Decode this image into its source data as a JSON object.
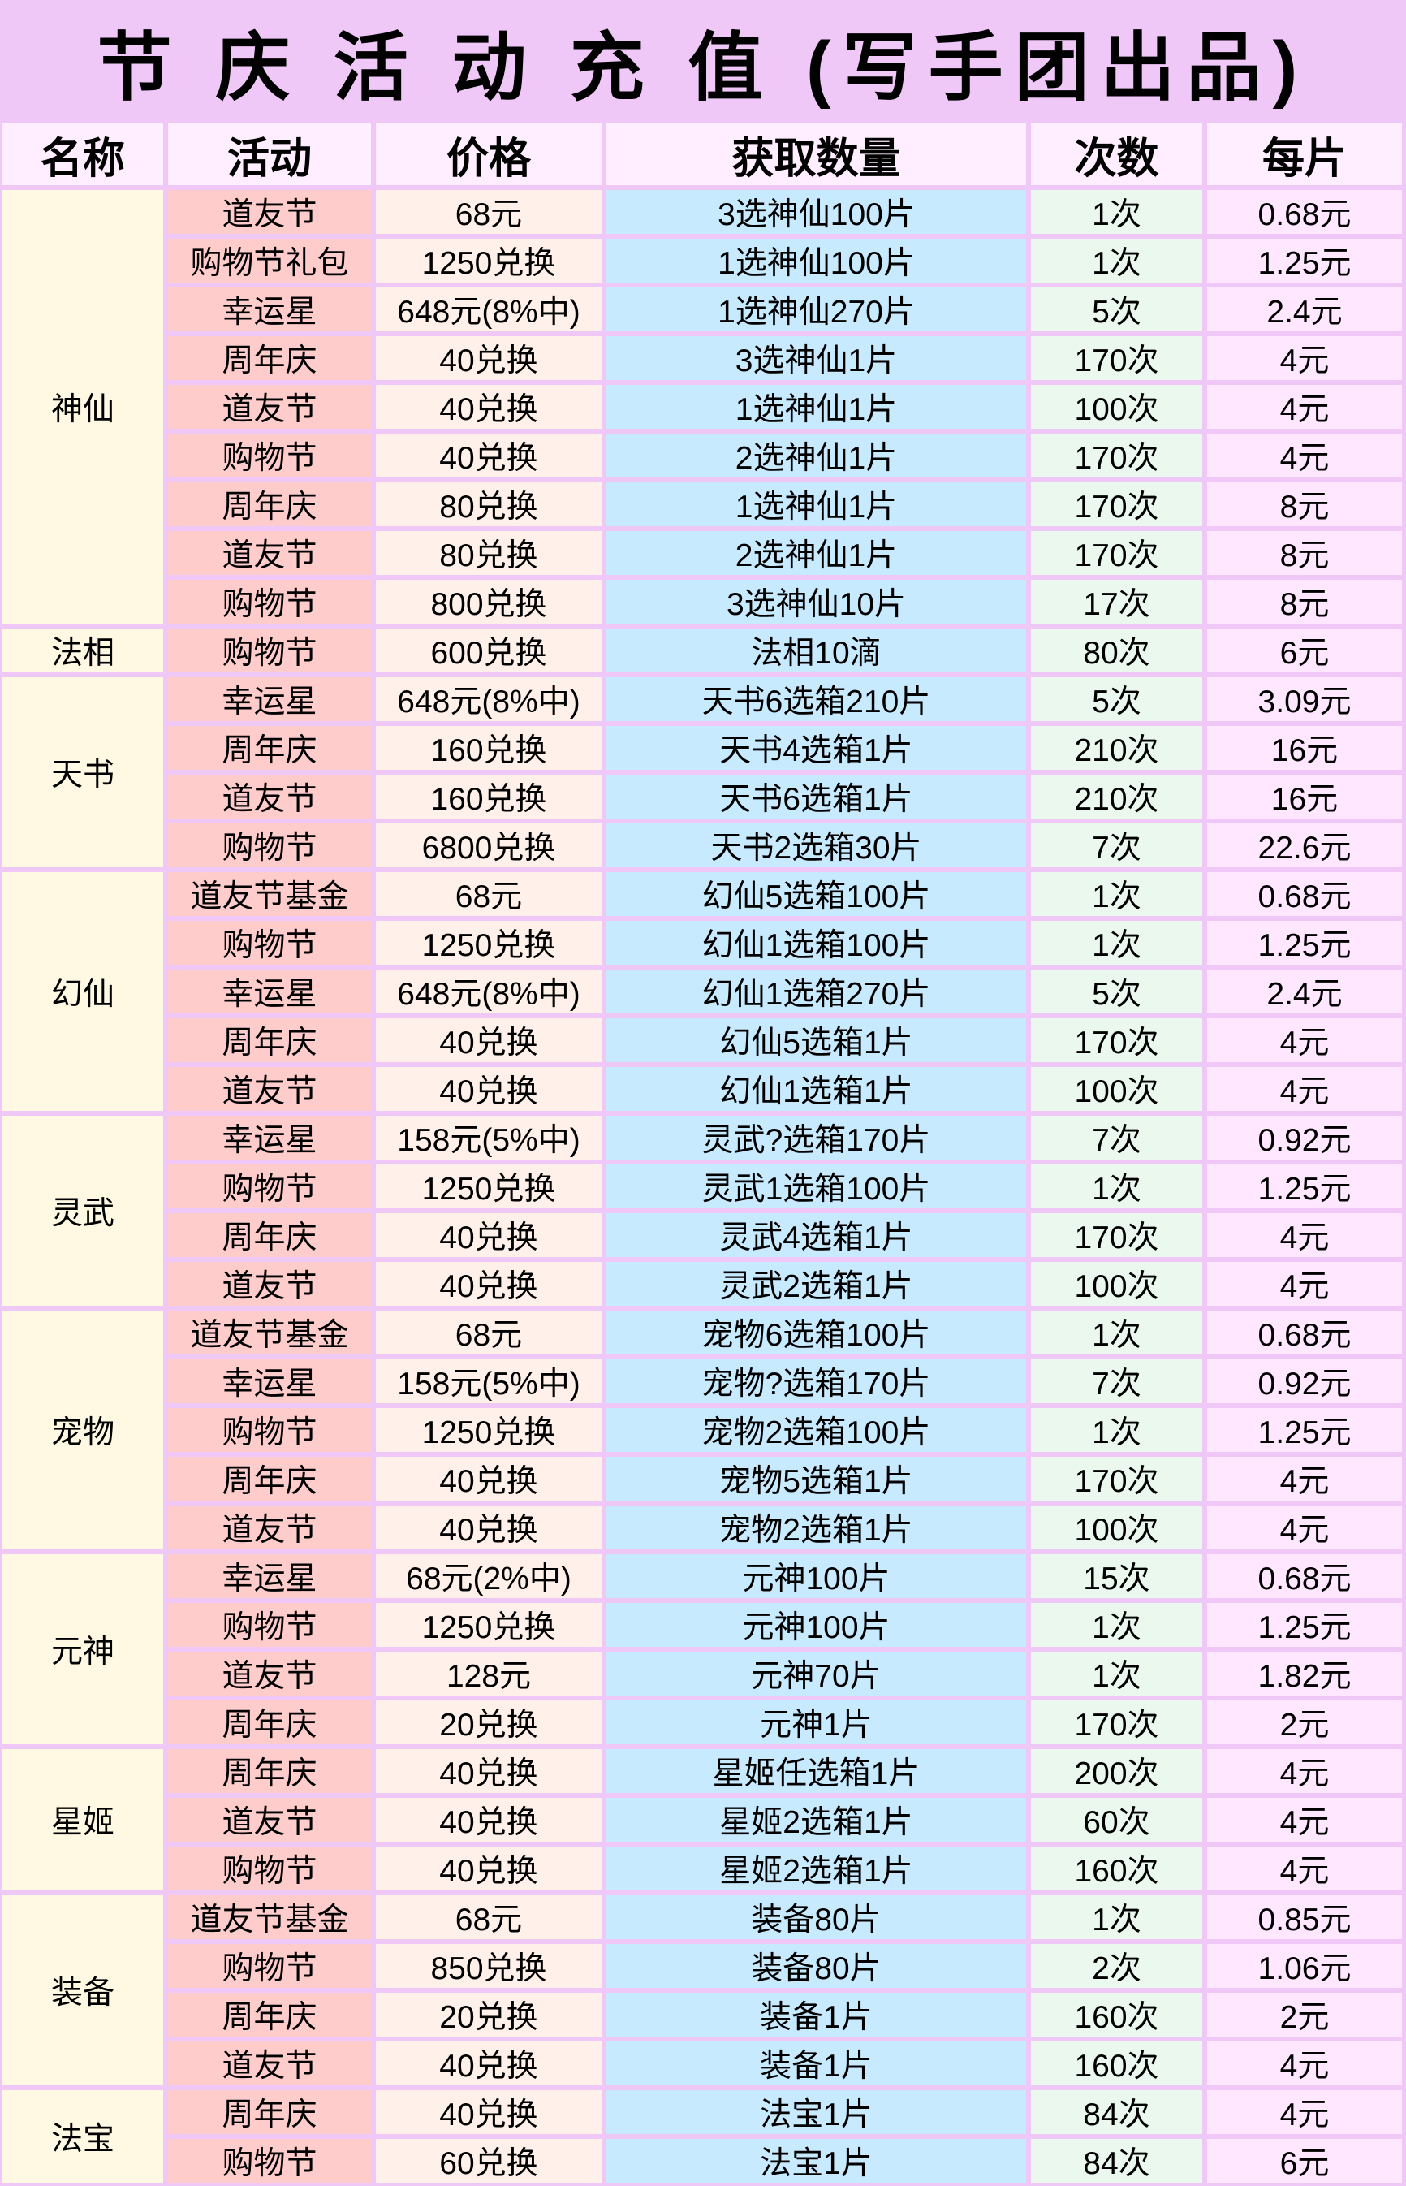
{
  "title": "节 庆 活 动 充 值 (写手团出品)",
  "headers": [
    "名称",
    "活动",
    "价格",
    "获取数量",
    "次数",
    "每片"
  ],
  "colors": {
    "background": "#f0c8f8",
    "header": "#ffeeff",
    "name": "#fff8e2",
    "activity": "#ffcccc",
    "price": "#fff0ea",
    "quantity": "#c8eaff",
    "count": "#eaf8ee",
    "per_piece": "#ffe8ff"
  },
  "groups": [
    {
      "name": "神仙",
      "rows": [
        [
          "道友节",
          "68元",
          "3选神仙100片",
          "1次",
          "0.68元"
        ],
        [
          "购物节礼包",
          "1250兑换",
          "1选神仙100片",
          "1次",
          "1.25元"
        ],
        [
          "幸运星",
          "648元(8%中)",
          "1选神仙270片",
          "5次",
          "2.4元"
        ],
        [
          "周年庆",
          "40兑换",
          "3选神仙1片",
          "170次",
          "4元"
        ],
        [
          "道友节",
          "40兑换",
          "1选神仙1片",
          "100次",
          "4元"
        ],
        [
          "购物节",
          "40兑换",
          "2选神仙1片",
          "170次",
          "4元"
        ],
        [
          "周年庆",
          "80兑换",
          "1选神仙1片",
          "170次",
          "8元"
        ],
        [
          "道友节",
          "80兑换",
          "2选神仙1片",
          "170次",
          "8元"
        ],
        [
          "购物节",
          "800兑换",
          "3选神仙10片",
          "17次",
          "8元"
        ]
      ]
    },
    {
      "name": "法相",
      "rows": [
        [
          "购物节",
          "600兑换",
          "法相10滴",
          "80次",
          "6元"
        ]
      ]
    },
    {
      "name": "天书",
      "rows": [
        [
          "幸运星",
          "648元(8%中)",
          "天书6选箱210片",
          "5次",
          "3.09元"
        ],
        [
          "周年庆",
          "160兑换",
          "天书4选箱1片",
          "210次",
          "16元"
        ],
        [
          "道友节",
          "160兑换",
          "天书6选箱1片",
          "210次",
          "16元"
        ],
        [
          "购物节",
          "6800兑换",
          "天书2选箱30片",
          "7次",
          "22.6元"
        ]
      ]
    },
    {
      "name": "幻仙",
      "rows": [
        [
          "道友节基金",
          "68元",
          "幻仙5选箱100片",
          "1次",
          "0.68元"
        ],
        [
          "购物节",
          "1250兑换",
          "幻仙1选箱100片",
          "1次",
          "1.25元"
        ],
        [
          "幸运星",
          "648元(8%中)",
          "幻仙1选箱270片",
          "5次",
          "2.4元"
        ],
        [
          "周年庆",
          "40兑换",
          "幻仙5选箱1片",
          "170次",
          "4元"
        ],
        [
          "道友节",
          "40兑换",
          "幻仙1选箱1片",
          "100次",
          "4元"
        ]
      ]
    },
    {
      "name": "灵武",
      "rows": [
        [
          "幸运星",
          "158元(5%中)",
          "灵武?选箱170片",
          "7次",
          "0.92元"
        ],
        [
          "购物节",
          "1250兑换",
          "灵武1选箱100片",
          "1次",
          "1.25元"
        ],
        [
          "周年庆",
          "40兑换",
          "灵武4选箱1片",
          "170次",
          "4元"
        ],
        [
          "道友节",
          "40兑换",
          "灵武2选箱1片",
          "100次",
          "4元"
        ]
      ]
    },
    {
      "name": "宠物",
      "rows": [
        [
          "道友节基金",
          "68元",
          "宠物6选箱100片",
          "1次",
          "0.68元"
        ],
        [
          "幸运星",
          "158元(5%中)",
          "宠物?选箱170片",
          "7次",
          "0.92元"
        ],
        [
          "购物节",
          "1250兑换",
          "宠物2选箱100片",
          "1次",
          "1.25元"
        ],
        [
          "周年庆",
          "40兑换",
          "宠物5选箱1片",
          "170次",
          "4元"
        ],
        [
          "道友节",
          "40兑换",
          "宠物2选箱1片",
          "100次",
          "4元"
        ]
      ]
    },
    {
      "name": "元神",
      "rows": [
        [
          "幸运星",
          "68元(2%中)",
          "元神100片",
          "15次",
          "0.68元"
        ],
        [
          "购物节",
          "1250兑换",
          "元神100片",
          "1次",
          "1.25元"
        ],
        [
          "道友节",
          "128元",
          "元神70片",
          "1次",
          "1.82元"
        ],
        [
          "周年庆",
          "20兑换",
          "元神1片",
          "170次",
          "2元"
        ]
      ]
    },
    {
      "name": "星姬",
      "rows": [
        [
          "周年庆",
          "40兑换",
          "星姬任选箱1片",
          "200次",
          "4元"
        ],
        [
          "道友节",
          "40兑换",
          "星姬2选箱1片",
          "60次",
          "4元"
        ],
        [
          "购物节",
          "40兑换",
          "星姬2选箱1片",
          "160次",
          "4元"
        ]
      ]
    },
    {
      "name": "装备",
      "rows": [
        [
          "道友节基金",
          "68元",
          "装备80片",
          "1次",
          "0.85元"
        ],
        [
          "购物节",
          "850兑换",
          "装备80片",
          "2次",
          "1.06元"
        ],
        [
          "周年庆",
          "20兑换",
          "装备1片",
          "160次",
          "2元"
        ],
        [
          "道友节",
          "40兑换",
          "装备1片",
          "160次",
          "4元"
        ]
      ]
    },
    {
      "name": "法宝",
      "rows": [
        [
          "周年庆",
          "40兑换",
          "法宝1片",
          "84次",
          "4元"
        ],
        [
          "购物节",
          "60兑换",
          "法宝1片",
          "84次",
          "6元"
        ]
      ]
    }
  ]
}
